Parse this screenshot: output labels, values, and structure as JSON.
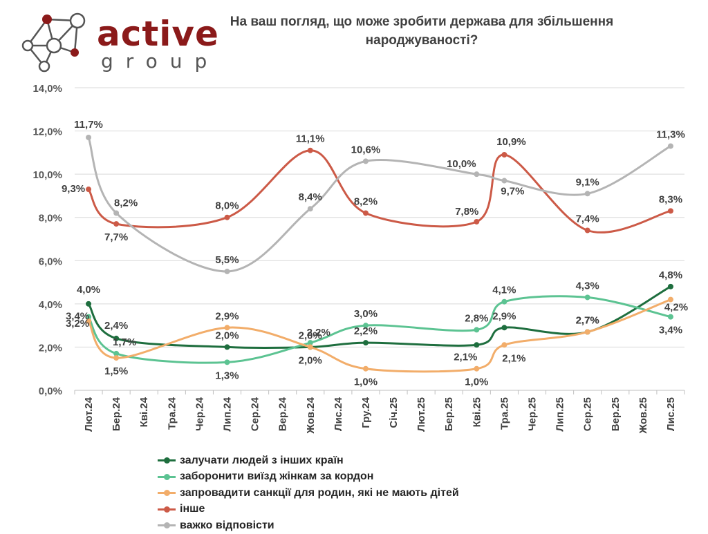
{
  "logo": {
    "name": "active-group-logo",
    "brand_top": "active",
    "brand_bottom": "group",
    "color_dark": "#8b1a1a",
    "color_gray": "#555555"
  },
  "title": "На ваш погляд, що може зробити держава для збільшення народжуваності?",
  "chart_data": {
    "type": "line",
    "title": "На ваш погляд, що може зробити держава для збільшення народжуваності?",
    "xlabel": "",
    "ylabel": "",
    "ylim": [
      0,
      14
    ],
    "yticks": [
      "0,0%",
      "2,0%",
      "4,0%",
      "6,0%",
      "8,0%",
      "10,0%",
      "12,0%",
      "14,0%"
    ],
    "grid": true,
    "legend_position": "bottom",
    "categories": [
      "Лют.24",
      "Бер.24",
      "Кві.24",
      "Тра.24",
      "Чер.24",
      "Лип.24",
      "Сер.24",
      "Вер.24",
      "Жов.24",
      "Лис.24",
      "Гру.24",
      "Січ.25",
      "Лют.25",
      "Бер.25",
      "Кві.25",
      "Тра.25",
      "Чер.25",
      "Лип.25",
      "Сер.25",
      "Вер.25",
      "Жов.25",
      "Лис.25"
    ],
    "series": [
      {
        "name": "залучати людей з інших країн",
        "color": "#1e6e3e",
        "points": [
          [
            0,
            4.0
          ],
          [
            1,
            2.4
          ],
          [
            5,
            2.0
          ],
          [
            8,
            2.0
          ],
          [
            10,
            2.2
          ],
          [
            14,
            2.1
          ],
          [
            15,
            2.9
          ],
          [
            18,
            2.7
          ],
          [
            21,
            4.8
          ]
        ],
        "labels": [
          "4,0%",
          "2,4%",
          "2,0%",
          "2,0%",
          "2,2%",
          "2,1%",
          "2,9%",
          "2,7%",
          "4,8%"
        ]
      },
      {
        "name": "заборонити виїзд жінкам за кордон",
        "color": "#5cc392",
        "points": [
          [
            0,
            3.4
          ],
          [
            1,
            1.7
          ],
          [
            5,
            1.3
          ],
          [
            8,
            2.2
          ],
          [
            10,
            3.0
          ],
          [
            14,
            2.8
          ],
          [
            15,
            4.1
          ],
          [
            18,
            4.3
          ],
          [
            21,
            3.4
          ]
        ],
        "labels": [
          "3,4%",
          "1,7%",
          "1,3%",
          "2,2%",
          "3,0%",
          "2,8%",
          "4,1%",
          "4,3%",
          "3,4%"
        ]
      },
      {
        "name": "запровадити санкції для родин, які не мають дітей",
        "color": "#f2ad6a",
        "points": [
          [
            0,
            3.2
          ],
          [
            1,
            1.5
          ],
          [
            5,
            2.9
          ],
          [
            8,
            2.0
          ],
          [
            10,
            1.0
          ],
          [
            14,
            1.0
          ],
          [
            15,
            2.1
          ],
          [
            18,
            2.7
          ],
          [
            21,
            4.2
          ]
        ],
        "labels": [
          "3,2%",
          "1,5%",
          "2,9%",
          "2,0%",
          "1,0%",
          "1,0%",
          "2,1%",
          "2,7%",
          "4,2%"
        ]
      },
      {
        "name": "інше",
        "color": "#cc5a47",
        "points": [
          [
            0,
            9.3
          ],
          [
            1,
            7.7
          ],
          [
            5,
            8.0
          ],
          [
            8,
            11.1
          ],
          [
            10,
            8.2
          ],
          [
            14,
            7.8
          ],
          [
            15,
            10.9
          ],
          [
            18,
            7.4
          ],
          [
            21,
            8.3
          ]
        ],
        "labels": [
          "9,3%",
          "7,7%",
          "8,0%",
          "11,1%",
          "8,2%",
          "7,8%",
          "10,9%",
          "7,4%",
          "8,3%"
        ]
      },
      {
        "name": "важко відповісти",
        "color": "#b4b4b4",
        "points": [
          [
            0,
            11.7
          ],
          [
            1,
            8.2
          ],
          [
            5,
            5.5
          ],
          [
            8,
            8.4
          ],
          [
            10,
            10.6
          ],
          [
            14,
            10.0
          ],
          [
            15,
            9.7
          ],
          [
            18,
            9.1
          ],
          [
            21,
            11.3
          ]
        ],
        "labels": [
          "11,7%",
          "8,2%",
          "5,5%",
          "8,4%",
          "10,6%",
          "10,0%",
          "9,7%",
          "9,1%",
          "11,3%"
        ]
      }
    ]
  }
}
